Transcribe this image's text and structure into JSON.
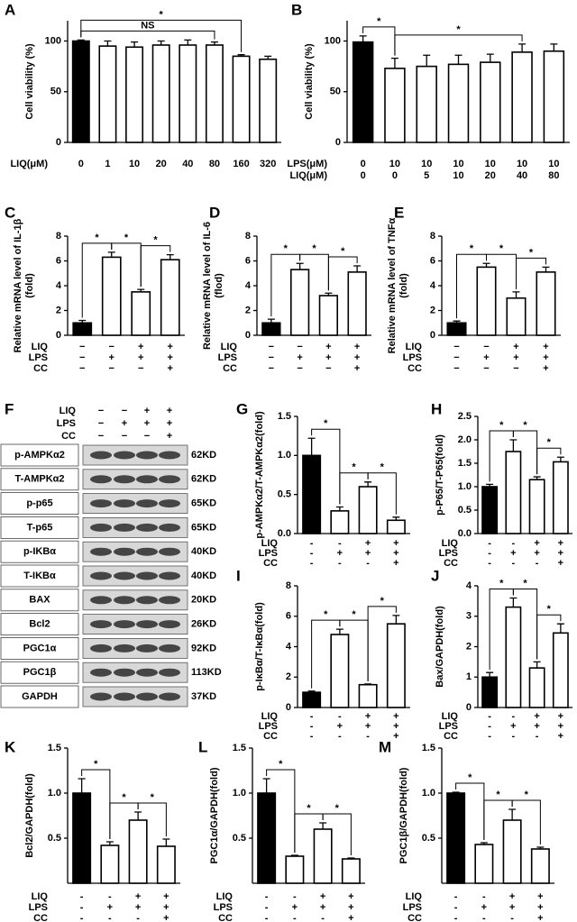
{
  "chart_data": [
    {
      "type": "bar",
      "panel": "A",
      "ylabel": [
        "Cell viability (%)"
      ],
      "ylim": [
        0,
        120
      ],
      "yticks": [
        0,
        50,
        100
      ],
      "values": [
        100,
        95,
        94,
        96,
        96,
        96,
        85,
        82
      ],
      "errors": [
        1,
        5,
        5,
        4,
        5,
        3,
        1.5,
        3
      ],
      "colors": [
        "#000000",
        "#ffffff",
        "#ffffff",
        "#ffffff",
        "#ffffff",
        "#ffffff",
        "#ffffff",
        "#ffffff"
      ],
      "conditions": [
        {
          "name": "LIQ(μM)",
          "marks": [
            "0",
            "1",
            "10",
            "20",
            "40",
            "80",
            "160",
            "320"
          ]
        }
      ],
      "brackets": [
        {
          "label": "NS",
          "from": 0,
          "to": 5
        },
        {
          "label": "*",
          "from": 0,
          "to": 6
        }
      ]
    },
    {
      "type": "bar",
      "panel": "B",
      "ylabel": [
        "Cell viability (%)"
      ],
      "ylim": [
        0,
        120
      ],
      "yticks": [
        0,
        50,
        100
      ],
      "values": [
        99,
        73,
        75,
        77,
        79,
        89,
        90
      ],
      "errors": [
        6,
        10,
        11,
        9,
        8,
        8,
        7
      ],
      "colors": [
        "#000000",
        "#ffffff",
        "#ffffff",
        "#ffffff",
        "#ffffff",
        "#ffffff",
        "#ffffff"
      ],
      "conditions": [
        {
          "name": "LPS(μM)",
          "marks": [
            "0",
            "10",
            "10",
            "10",
            "10",
            "10",
            "10"
          ]
        },
        {
          "name": "LIQ(μM)",
          "marks": [
            "0",
            "0",
            "5",
            "10",
            "20",
            "40",
            "80"
          ]
        }
      ],
      "brackets": [
        {
          "label": "*",
          "from": 0,
          "to": 1
        },
        {
          "label": "*",
          "from": 1,
          "to": 5
        }
      ]
    },
    {
      "type": "bar",
      "panel": "C",
      "ylabel": [
        "Relative mRNA level of IL-1β",
        "(fold)"
      ],
      "ylim": [
        0,
        8
      ],
      "yticks": [
        0,
        2,
        4,
        6,
        8
      ],
      "values": [
        1,
        6.3,
        3.5,
        6.1
      ],
      "errors": [
        0.2,
        0.4,
        0.2,
        0.4
      ],
      "colors": [
        "#000000",
        "#ffffff",
        "#ffffff",
        "#ffffff"
      ],
      "conditions": [
        {
          "name": "LIQ",
          "marks": [
            "−",
            "−",
            "+",
            "+"
          ]
        },
        {
          "name": "LPS",
          "marks": [
            "−",
            "+",
            "+",
            "+"
          ]
        },
        {
          "name": "CC",
          "marks": [
            "−",
            "−",
            "−",
            "+"
          ]
        }
      ],
      "brackets": [
        {
          "label": "*",
          "from": 0,
          "to": 1
        },
        {
          "label": "*",
          "from": 1,
          "to": 2
        },
        {
          "label": "*",
          "from": 2,
          "to": 3
        }
      ]
    },
    {
      "type": "bar",
      "panel": "D",
      "ylabel": [
        "Relative mRNA level of IL-6",
        "(flod)"
      ],
      "ylim": [
        0,
        8
      ],
      "yticks": [
        0,
        2,
        4,
        6,
        8
      ],
      "values": [
        1,
        5.3,
        3.2,
        5.1
      ],
      "errors": [
        0.3,
        0.5,
        0.2,
        0.5
      ],
      "colors": [
        "#000000",
        "#ffffff",
        "#ffffff",
        "#ffffff"
      ],
      "conditions": [
        {
          "name": "LIQ",
          "marks": [
            "−",
            "−",
            "+",
            "+"
          ]
        },
        {
          "name": "LPS",
          "marks": [
            "−",
            "+",
            "+",
            "+"
          ]
        },
        {
          "name": "CC",
          "marks": [
            "−",
            "−",
            "−",
            "+"
          ]
        }
      ],
      "brackets": [
        {
          "label": "*",
          "from": 0,
          "to": 1
        },
        {
          "label": "*",
          "from": 1,
          "to": 2
        },
        {
          "label": "*",
          "from": 2,
          "to": 3
        }
      ]
    },
    {
      "type": "bar",
      "panel": "E",
      "ylabel": [
        "Relative mRNA level of TNFα",
        "(fold)"
      ],
      "ylim": [
        0,
        8
      ],
      "yticks": [
        0,
        2,
        4,
        6,
        8
      ],
      "values": [
        1,
        5.5,
        3,
        5.1
      ],
      "errors": [
        0.15,
        0.3,
        0.5,
        0.4
      ],
      "colors": [
        "#000000",
        "#ffffff",
        "#ffffff",
        "#ffffff"
      ],
      "conditions": [
        {
          "name": "LIQ",
          "marks": [
            "−",
            "−",
            "+",
            "+"
          ]
        },
        {
          "name": "LPS",
          "marks": [
            "−",
            "+",
            "+",
            "+"
          ]
        },
        {
          "name": "CC",
          "marks": [
            "−",
            "−",
            "−",
            "+"
          ]
        }
      ],
      "brackets": [
        {
          "label": "*",
          "from": 0,
          "to": 1
        },
        {
          "label": "*",
          "from": 1,
          "to": 2
        },
        {
          "label": "*",
          "from": 2,
          "to": 3
        }
      ]
    },
    {
      "type": "bar",
      "panel": "G",
      "ylabel": [
        "p-AMPKα2/T-AMPKα2(fold)"
      ],
      "ylim": [
        0,
        1.5
      ],
      "yticks": [
        {
          "value": 0,
          "label": "0.0"
        },
        0.5,
        {
          "value": 1,
          "label": "1.0"
        },
        1.5
      ],
      "values": [
        1.0,
        0.29,
        0.6,
        0.17
      ],
      "errors": [
        0.22,
        0.05,
        0.06,
        0.04
      ],
      "colors": [
        "#000000",
        "#ffffff",
        "#ffffff",
        "#ffffff"
      ],
      "conditions": [
        {
          "name": "LIQ",
          "marks": [
            "-",
            "-",
            "+",
            "+"
          ]
        },
        {
          "name": "LPS",
          "marks": [
            "-",
            "+",
            "+",
            "+"
          ]
        },
        {
          "name": "CC",
          "marks": [
            "-",
            "-",
            "-",
            "+"
          ]
        }
      ],
      "brackets": [
        {
          "label": "*",
          "from": 0,
          "to": 1
        },
        {
          "label": "*",
          "from": 1,
          "to": 2
        },
        {
          "label": "*",
          "from": 2,
          "to": 3
        }
      ]
    },
    {
      "type": "bar",
      "panel": "H",
      "ylabel": [
        "p-P65/T-P65(fold)"
      ],
      "ylim": [
        0,
        2.5
      ],
      "yticks": [
        {
          "value": 0,
          "label": "0.0"
        },
        0.5,
        {
          "value": 1,
          "label": "1.0"
        },
        1.5,
        {
          "value": 2,
          "label": "2.0"
        },
        2.5
      ],
      "values": [
        1.0,
        1.75,
        1.15,
        1.53
      ],
      "errors": [
        0.05,
        0.25,
        0.06,
        0.1
      ],
      "colors": [
        "#000000",
        "#ffffff",
        "#ffffff",
        "#ffffff"
      ],
      "conditions": [
        {
          "name": "LIQ",
          "marks": [
            "-",
            "-",
            "+",
            "+"
          ]
        },
        {
          "name": "LPS",
          "marks": [
            "-",
            "+",
            "+",
            "+"
          ]
        },
        {
          "name": "CC",
          "marks": [
            "-",
            "-",
            "-",
            "+"
          ]
        }
      ],
      "brackets": [
        {
          "label": "*",
          "from": 0,
          "to": 1
        },
        {
          "label": "*",
          "from": 1,
          "to": 2
        },
        {
          "label": "*",
          "from": 2,
          "to": 3
        }
      ]
    },
    {
      "type": "bar",
      "panel": "I",
      "ylabel": [
        "p-IκBα/T-IκBα(fold)"
      ],
      "ylim": [
        0,
        8
      ],
      "yticks": [
        0,
        2,
        4,
        6,
        8
      ],
      "values": [
        1,
        4.8,
        1.5,
        5.5
      ],
      "errors": [
        0.08,
        0.35,
        0.05,
        0.55
      ],
      "colors": [
        "#000000",
        "#ffffff",
        "#ffffff",
        "#ffffff"
      ],
      "conditions": [
        {
          "name": "LIQ",
          "marks": [
            "-",
            "-",
            "+",
            "+"
          ]
        },
        {
          "name": "LPS",
          "marks": [
            "-",
            "+",
            "+",
            "+"
          ]
        },
        {
          "name": "CC",
          "marks": [
            "-",
            "-",
            "-",
            "+"
          ]
        }
      ],
      "brackets": [
        {
          "label": "*",
          "from": 0,
          "to": 1
        },
        {
          "label": "*",
          "from": 1,
          "to": 2
        },
        {
          "label": "*",
          "from": 2,
          "to": 3
        }
      ]
    },
    {
      "type": "bar",
      "panel": "J",
      "ylabel": [
        "Bax/GAPDH(fold)"
      ],
      "ylim": [
        0,
        4
      ],
      "yticks": [
        0,
        1,
        2,
        3,
        4
      ],
      "values": [
        1,
        3.3,
        1.3,
        2.45
      ],
      "errors": [
        0.15,
        0.3,
        0.2,
        0.3
      ],
      "colors": [
        "#000000",
        "#ffffff",
        "#ffffff",
        "#ffffff"
      ],
      "conditions": [
        {
          "name": "LIQ",
          "marks": [
            "-",
            "-",
            "+",
            "+"
          ]
        },
        {
          "name": "LPS",
          "marks": [
            "-",
            "+",
            "+",
            "+"
          ]
        },
        {
          "name": "CC",
          "marks": [
            "-",
            "-",
            "-",
            "+"
          ]
        }
      ],
      "brackets": [
        {
          "label": "*",
          "from": 0,
          "to": 1
        },
        {
          "label": "*",
          "from": 1,
          "to": 2
        },
        {
          "label": "*",
          "from": 2,
          "to": 3
        }
      ]
    },
    {
      "type": "bar",
      "panel": "K",
      "ylabel": [
        "Bcl2/GAPDH(fold)"
      ],
      "ylim": [
        0,
        1.5
      ],
      "yticks": [
        {
          "value": 0.5,
          "label": "0.5"
        },
        {
          "value": 1,
          "label": "1.0"
        },
        1.5
      ],
      "values": [
        1.0,
        0.42,
        0.7,
        0.41
      ],
      "errors": [
        0.16,
        0.04,
        0.09,
        0.08
      ],
      "colors": [
        "#000000",
        "#ffffff",
        "#ffffff",
        "#ffffff"
      ],
      "conditions": [
        {
          "name": "LIQ",
          "marks": [
            "-",
            "-",
            "+",
            "+"
          ]
        },
        {
          "name": "LPS",
          "marks": [
            "-",
            "+",
            "+",
            "+"
          ]
        },
        {
          "name": "CC",
          "marks": [
            "-",
            "-",
            "-",
            "+"
          ]
        }
      ],
      "brackets": [
        {
          "label": "*",
          "from": 0,
          "to": 1
        },
        {
          "label": "*",
          "from": 1,
          "to": 2
        },
        {
          "label": "*",
          "from": 2,
          "to": 3
        }
      ]
    },
    {
      "type": "bar",
      "panel": "L",
      "ylabel": [
        "PGC1α/GAPDH(fold)"
      ],
      "ylim": [
        0,
        1.5
      ],
      "yticks": [
        0.5,
        {
          "value": 1,
          "label": "1.0"
        },
        1.5
      ],
      "values": [
        1.0,
        0.3,
        0.6,
        0.27
      ],
      "errors": [
        0.16,
        0.01,
        0.07,
        0.01
      ],
      "colors": [
        "#000000",
        "#ffffff",
        "#ffffff",
        "#ffffff"
      ],
      "conditions": [
        {
          "name": "LIQ",
          "marks": [
            "-",
            "-",
            "+",
            "+"
          ]
        },
        {
          "name": "LPS",
          "marks": [
            "-",
            "+",
            "+",
            "+"
          ]
        },
        {
          "name": "CC",
          "marks": [
            "-",
            "-",
            "-",
            "+"
          ]
        }
      ],
      "brackets": [
        {
          "label": "*",
          "from": 0,
          "to": 1
        },
        {
          "label": "*",
          "from": 1,
          "to": 2
        },
        {
          "label": "*",
          "from": 2,
          "to": 3
        }
      ]
    },
    {
      "type": "bar",
      "panel": "M",
      "ylabel": [
        "PGC1β/GAPDH(fold)"
      ],
      "ylim": [
        0,
        1.5
      ],
      "yticks": [
        0.5,
        {
          "value": 1,
          "label": "1.0"
        },
        1.5
      ],
      "values": [
        1.0,
        0.43,
        0.7,
        0.38
      ],
      "errors": [
        0.01,
        0.02,
        0.12,
        0.02
      ],
      "colors": [
        "#000000",
        "#ffffff",
        "#ffffff",
        "#ffffff"
      ],
      "conditions": [
        {
          "name": "LIQ",
          "marks": [
            "-",
            "-",
            "+",
            "+"
          ]
        },
        {
          "name": "LPS",
          "marks": [
            "-",
            "+",
            "+",
            "+"
          ]
        },
        {
          "name": "CC",
          "marks": [
            "-",
            "-",
            "-",
            "+"
          ]
        }
      ],
      "brackets": [
        {
          "label": "*",
          "from": 0,
          "to": 1
        },
        {
          "label": "*",
          "from": 1,
          "to": 2
        },
        {
          "label": "*",
          "from": 2,
          "to": 3
        }
      ]
    }
  ],
  "blot": {
    "panel": "F",
    "lanes": [
      {
        "name": "LIQ",
        "marks": [
          "−",
          "−",
          "+",
          "+"
        ]
      },
      {
        "name": "LPS",
        "marks": [
          "−",
          "+",
          "+",
          "+"
        ]
      },
      {
        "name": "CC",
        "marks": [
          "−",
          "−",
          "−",
          "+"
        ]
      }
    ],
    "bands": [
      {
        "name": "p-AMPKα2",
        "size": "62KD"
      },
      {
        "name": "T-AMPKα2",
        "size": "62KD"
      },
      {
        "name": "p-p65",
        "size": "65KD"
      },
      {
        "name": "T-p65",
        "size": "65KD"
      },
      {
        "name": "p-IKBα",
        "size": "40KD"
      },
      {
        "name": "T-IKBα",
        "size": "40KD"
      },
      {
        "name": "BAX",
        "size": "20KD"
      },
      {
        "name": "Bcl2",
        "size": "26KD"
      },
      {
        "name": "PGC1α",
        "size": "92KD"
      },
      {
        "name": "PGC1β",
        "size": "113KD"
      },
      {
        "name": "GAPDH",
        "size": "37KD"
      }
    ]
  }
}
